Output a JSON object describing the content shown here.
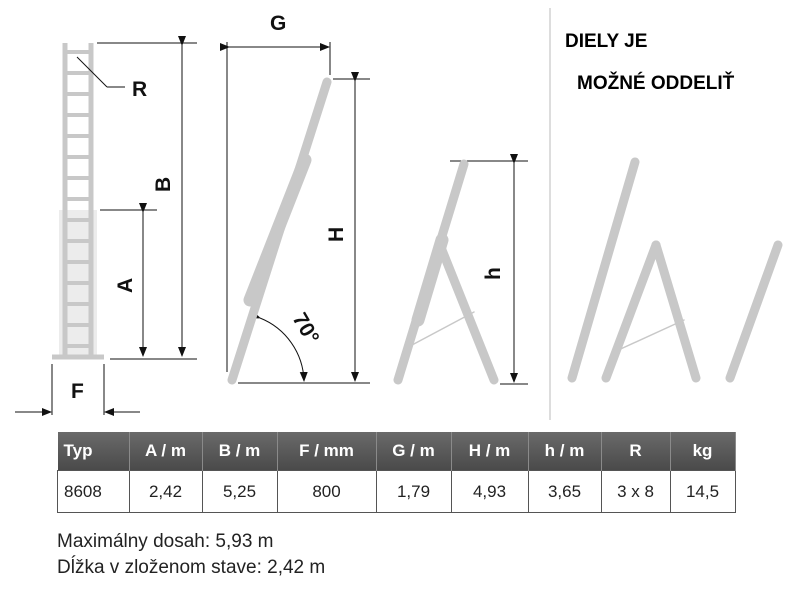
{
  "diagram": {
    "labels": {
      "R": "R",
      "B": "B",
      "A": "A",
      "F": "F",
      "G": "G",
      "H": "H",
      "h": "h",
      "angle": "70°"
    },
    "note_line1": "DIELY JE",
    "note_line2": "MOŽNÉ ODDELIŤ",
    "ladder_color": "#c8c8c8"
  },
  "table": {
    "headers": [
      "Typ",
      "A / m",
      "B / m",
      "F / mm",
      "G / m",
      "H / m",
      "h / m",
      "R",
      "kg"
    ],
    "rows": [
      [
        "8608",
        "2,42",
        "5,25",
        "800",
        "1,79",
        "4,93",
        "3,65",
        "3 x 8",
        "14,5"
      ]
    ]
  },
  "footer": {
    "max_reach": "Maximálny dosah: 5,93 m",
    "folded_length": "Dĺžka v zloženom stave: 2,42 m"
  }
}
